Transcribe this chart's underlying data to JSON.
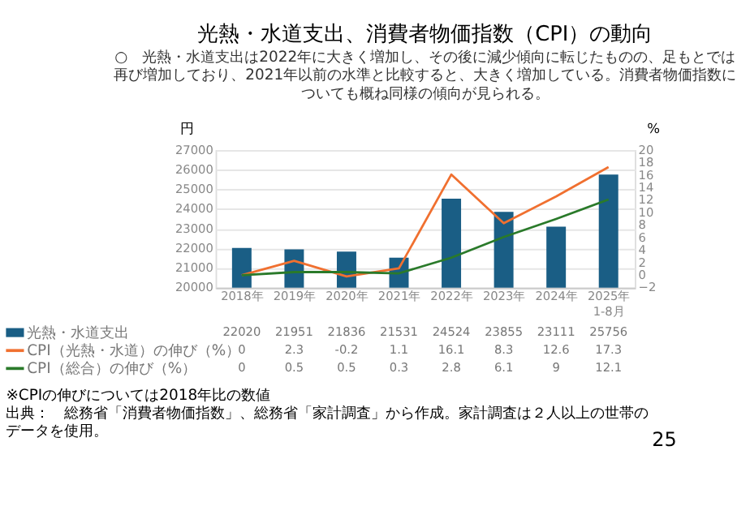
{
  "chart_data": {
    "type": "bar",
    "title": "光熱・水道支出、消費者物価指数（CPI）の動向",
    "subtitle": "○　光熱・水道支出は2022年に大きく増加し、その後に減少傾向に転じたものの、足もとでは再び増加しており、2021年以前の水準と比較すると、大きく増加している。消費者物価指数についても概ね同様の傾向が見られる。",
    "categories": [
      "2018年",
      "2019年",
      "2020年",
      "2021年",
      "2022年",
      "2023年",
      "2024年",
      "2025年\n1-8月"
    ],
    "ylabel": "円",
    "y2label": "%",
    "ylim": [
      20000,
      27000
    ],
    "yticks": [
      20000,
      21000,
      22000,
      23000,
      24000,
      25000,
      26000,
      27000
    ],
    "y2lim": [
      -2,
      20
    ],
    "y2ticks": [
      -2,
      0,
      2,
      4,
      6,
      8,
      10,
      12,
      14,
      16,
      18,
      20
    ],
    "grid": "y",
    "legend": "bottom",
    "data_labels": true,
    "series": [
      {
        "name": "光熱・水道支出",
        "color": "#1a5e85",
        "values": [
          22020,
          21951,
          21836,
          21531,
          24524,
          23855,
          23111,
          25756
        ]
      },
      {
        "name": "CPI（光熱・水道）の伸び（%）",
        "type": "line",
        "axis": "y2",
        "color": "#f07030",
        "values": [
          0,
          2.3,
          -0.2,
          1.1,
          16.1,
          8.3,
          12.6,
          17.3
        ]
      },
      {
        "name": "CPI（総合）の伸び（%）",
        "type": "line",
        "axis": "y2",
        "color": "#2a7a2a",
        "values": [
          0,
          0.5,
          0.5,
          0.3,
          2.8,
          6.1,
          9,
          12.1
        ]
      }
    ],
    "annotations": [
      "※CPIの伸びについては2018年比の数値",
      "出典：　総務省「消費者物価指数」、総務省「家計調査」から作成。家計調査は２人以上の世帯のデータを使用。",
      "25"
    ]
  }
}
